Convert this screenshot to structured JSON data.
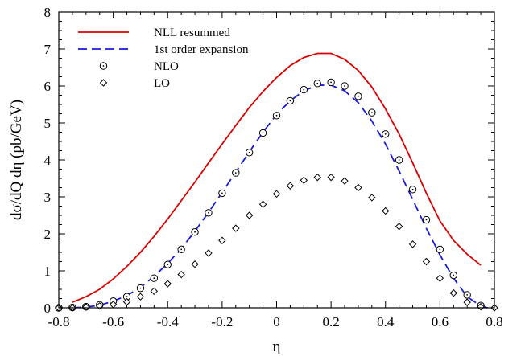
{
  "chart_data": {
    "type": "line",
    "title": "",
    "xlabel": "η",
    "ylabel": "dσ/dQ dη (pb/GeV)",
    "xlim": [
      -0.8,
      0.8
    ],
    "ylim": [
      0,
      8
    ],
    "xticks": [
      -0.8,
      -0.6,
      -0.4,
      -0.2,
      0,
      0.2,
      0.4,
      0.6,
      0.8
    ],
    "xtick_labels": [
      "-0.8",
      "-0.6",
      "-0.4",
      "-0.2",
      "0",
      "0.2",
      "0.4",
      "0.6",
      "0.8"
    ],
    "yticks": [
      0,
      1,
      2,
      3,
      4,
      5,
      6,
      7,
      8
    ],
    "ytick_labels": [
      "0",
      "1",
      "2",
      "3",
      "4",
      "5",
      "6",
      "7",
      "8"
    ],
    "grid": false,
    "legend_position": "top-left",
    "series": [
      {
        "name": "NLL resummed",
        "style": "solid-line",
        "color": "#dd0000",
        "x": [
          -0.75,
          -0.7,
          -0.65,
          -0.6,
          -0.55,
          -0.5,
          -0.45,
          -0.4,
          -0.35,
          -0.3,
          -0.25,
          -0.2,
          -0.15,
          -0.1,
          -0.05,
          0,
          0.05,
          0.1,
          0.15,
          0.2,
          0.25,
          0.3,
          0.35,
          0.4,
          0.45,
          0.5,
          0.55,
          0.6,
          0.65,
          0.7,
          0.75
        ],
        "y": [
          0.15,
          0.3,
          0.5,
          0.78,
          1.12,
          1.5,
          1.93,
          2.4,
          2.9,
          3.4,
          3.92,
          4.43,
          4.93,
          5.42,
          5.85,
          6.23,
          6.55,
          6.77,
          6.88,
          6.88,
          6.72,
          6.42,
          5.97,
          5.38,
          4.7,
          3.92,
          3.1,
          2.35,
          1.82,
          1.45,
          1.15
        ]
      },
      {
        "name": "1st order expansion",
        "style": "dashed-line",
        "color": "#1a1ad8",
        "x": [
          -0.75,
          -0.7,
          -0.65,
          -0.6,
          -0.55,
          -0.5,
          -0.45,
          -0.4,
          -0.35,
          -0.3,
          -0.25,
          -0.2,
          -0.15,
          -0.1,
          -0.05,
          0,
          0.05,
          0.1,
          0.15,
          0.2,
          0.25,
          0.3,
          0.35,
          0.4,
          0.45,
          0.5,
          0.55,
          0.6,
          0.65,
          0.7,
          0.75,
          0.775
        ],
        "y": [
          0.0,
          0.02,
          0.07,
          0.18,
          0.33,
          0.55,
          0.85,
          1.2,
          1.6,
          2.07,
          2.58,
          3.12,
          3.67,
          4.22,
          4.75,
          5.23,
          5.6,
          5.87,
          6.02,
          6.02,
          5.87,
          5.55,
          5.05,
          4.43,
          3.7,
          2.93,
          2.15,
          1.43,
          0.8,
          0.3,
          0.05,
          0.0
        ]
      },
      {
        "name": "NLO",
        "style": "circle-markers",
        "color": "#000000",
        "x": [
          -0.8,
          -0.75,
          -0.7,
          -0.65,
          -0.6,
          -0.55,
          -0.5,
          -0.45,
          -0.4,
          -0.35,
          -0.3,
          -0.25,
          -0.2,
          -0.15,
          -0.1,
          -0.05,
          0,
          0.05,
          0.1,
          0.15,
          0.2,
          0.25,
          0.3,
          0.35,
          0.4,
          0.45,
          0.5,
          0.55,
          0.6,
          0.65,
          0.7,
          0.75
        ],
        "y": [
          0.0,
          0.01,
          0.03,
          0.08,
          0.18,
          0.3,
          0.53,
          0.8,
          1.17,
          1.58,
          2.05,
          2.57,
          3.1,
          3.65,
          4.2,
          4.73,
          5.2,
          5.6,
          5.9,
          6.07,
          6.1,
          6.0,
          5.72,
          5.28,
          4.7,
          4.0,
          3.2,
          2.38,
          1.58,
          0.88,
          0.35,
          0.06
        ]
      },
      {
        "name": "LO",
        "style": "diamond-markers",
        "color": "#000000",
        "x": [
          -0.8,
          -0.75,
          -0.7,
          -0.65,
          -0.6,
          -0.55,
          -0.5,
          -0.45,
          -0.4,
          -0.35,
          -0.3,
          -0.25,
          -0.2,
          -0.15,
          -0.1,
          -0.05,
          0,
          0.05,
          0.1,
          0.15,
          0.2,
          0.25,
          0.3,
          0.35,
          0.4,
          0.45,
          0.5,
          0.55,
          0.6,
          0.65,
          0.7,
          0.75,
          0.8
        ],
        "y": [
          0.0,
          0.0,
          0.02,
          0.05,
          0.09,
          0.16,
          0.3,
          0.45,
          0.65,
          0.9,
          1.18,
          1.48,
          1.82,
          2.15,
          2.5,
          2.8,
          3.08,
          3.3,
          3.45,
          3.53,
          3.53,
          3.43,
          3.25,
          2.98,
          2.62,
          2.2,
          1.72,
          1.25,
          0.8,
          0.4,
          0.15,
          0.03,
          0.0
        ]
      }
    ]
  }
}
